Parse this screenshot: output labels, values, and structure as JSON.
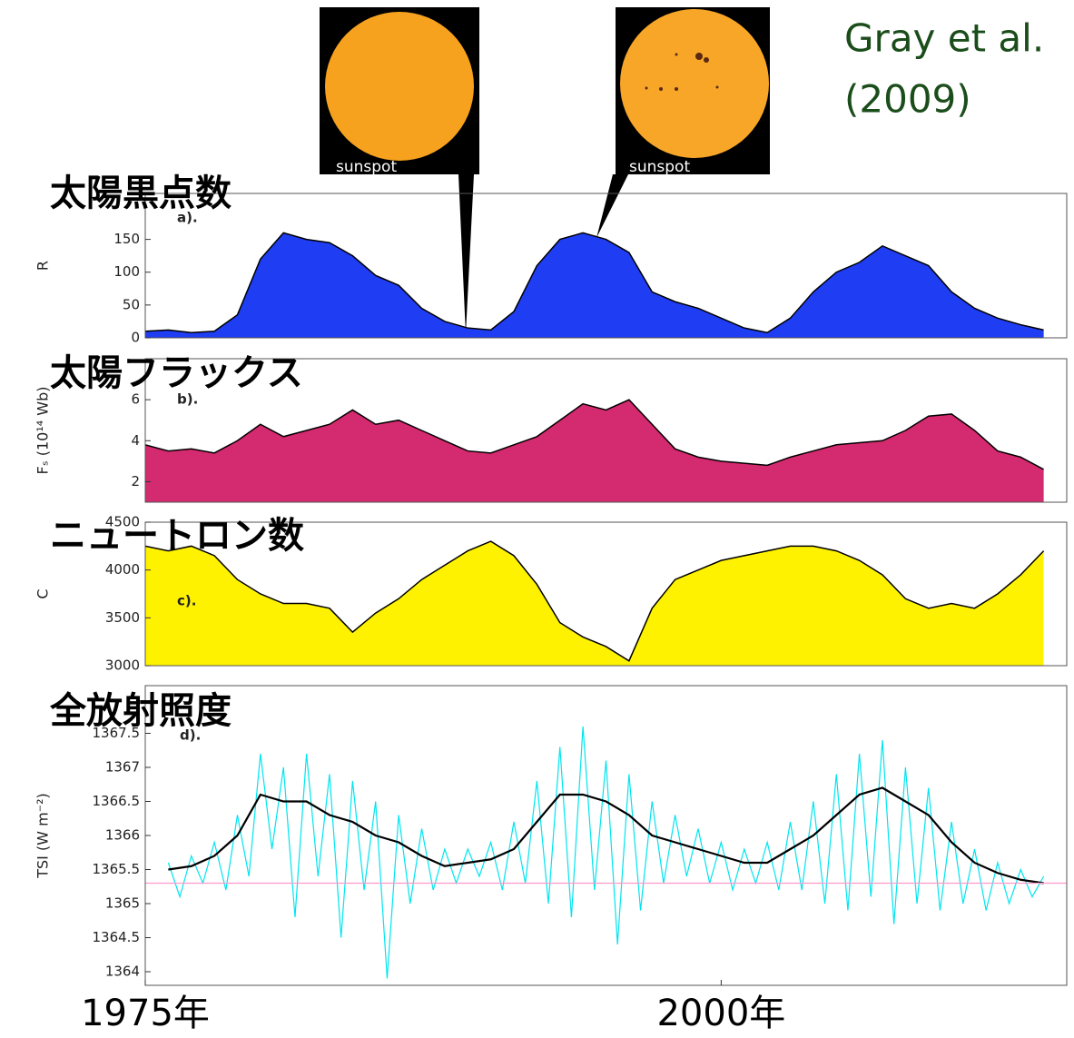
{
  "citation": [
    "Gray et al.",
    "(2009)"
  ],
  "images": [
    {
      "label": "sunspot"
    },
    {
      "label": "sunspot"
    }
  ],
  "chart_data": [
    {
      "type": "area",
      "title": "太陽黒点数",
      "panel_label": "a).",
      "ylabel": "R",
      "xlim": [
        1975,
        2015
      ],
      "ylim": [
        0,
        220
      ],
      "yticks": [
        0,
        50,
        100,
        150
      ],
      "line_color": "#000000",
      "x": [
        1975,
        1976,
        1977,
        1978,
        1979,
        1980,
        1981,
        1982,
        1983,
        1984,
        1985,
        1986,
        1987,
        1988,
        1989,
        1990,
        1991,
        1992,
        1993,
        1994,
        1995,
        1996,
        1997,
        1998,
        1999,
        2000,
        2001,
        2002,
        2003,
        2004,
        2005,
        2006,
        2007,
        2008,
        2009,
        2010,
        2011,
        2012,
        2013,
        2014
      ],
      "series": [
        {
          "color": "#1f3df2",
          "values": [
            10,
            12,
            8,
            10,
            35,
            120,
            160,
            150,
            145,
            125,
            95,
            80,
            45,
            25,
            15,
            12,
            40,
            110,
            150,
            160,
            150,
            130,
            70,
            55,
            45,
            30,
            15,
            8,
            30,
            70,
            100,
            115,
            140,
            125,
            110,
            70,
            45,
            30,
            20,
            12
          ]
        }
      ]
    },
    {
      "type": "area",
      "title": "太陽フラックス",
      "panel_label": "b).",
      "ylabel": "Fₛ (10¹⁴ Wb)",
      "xlim": [
        1975,
        2015
      ],
      "ylim": [
        1,
        8
      ],
      "yticks": [
        2,
        4,
        6
      ],
      "line_color": "#000000",
      "x": [
        1975,
        1976,
        1977,
        1978,
        1979,
        1980,
        1981,
        1982,
        1983,
        1984,
        1985,
        1986,
        1987,
        1988,
        1989,
        1990,
        1991,
        1992,
        1993,
        1994,
        1995,
        1996,
        1997,
        1998,
        1999,
        2000,
        2001,
        2002,
        2003,
        2004,
        2005,
        2006,
        2007,
        2008,
        2009,
        2010,
        2011,
        2012,
        2013,
        2014
      ],
      "series": [
        {
          "color": "#d42a6f",
          "values": [
            3.8,
            3.5,
            3.6,
            3.4,
            4.0,
            4.8,
            4.2,
            4.5,
            4.8,
            5.5,
            4.8,
            5.0,
            4.5,
            4.0,
            3.5,
            3.4,
            3.8,
            4.2,
            5.0,
            5.8,
            5.5,
            6.0,
            4.8,
            3.6,
            3.2,
            3.0,
            2.9,
            2.8,
            3.2,
            3.5,
            3.8,
            3.9,
            4.0,
            4.5,
            5.2,
            5.3,
            4.5,
            3.5,
            3.2,
            2.6
          ]
        }
      ]
    },
    {
      "type": "area",
      "title": "ニュートロン数",
      "panel_label": "c).",
      "ylabel": "C",
      "xlim": [
        1975,
        2015
      ],
      "ylim": [
        3000,
        4500
      ],
      "yticks": [
        3000,
        3500,
        4000,
        4500
      ],
      "line_color": "#000000",
      "x": [
        1975,
        1976,
        1977,
        1978,
        1979,
        1980,
        1981,
        1982,
        1983,
        1984,
        1985,
        1986,
        1987,
        1988,
        1989,
        1990,
        1991,
        1992,
        1993,
        1994,
        1995,
        1996,
        1997,
        1998,
        1999,
        2000,
        2001,
        2002,
        2003,
        2004,
        2005,
        2006,
        2007,
        2008,
        2009,
        2010,
        2011,
        2012,
        2013,
        2014
      ],
      "series": [
        {
          "color": "#fff200",
          "values": [
            4250,
            4200,
            4250,
            4150,
            3900,
            3750,
            3650,
            3650,
            3600,
            3350,
            3550,
            3700,
            3900,
            4050,
            4200,
            4300,
            4150,
            3850,
            3450,
            3300,
            3200,
            3050,
            3600,
            3900,
            4000,
            4100,
            4150,
            4200,
            4250,
            4250,
            4200,
            4100,
            3950,
            3700,
            3600,
            3650,
            3600,
            3750,
            3950,
            4200
          ]
        }
      ]
    },
    {
      "type": "line",
      "title": "全放射照度",
      "panel_label": "d).",
      "ylabel": "TSI (W m⁻²)",
      "xlim": [
        1975,
        2015
      ],
      "ylim": [
        1363.8,
        1368.2
      ],
      "yticks": [
        1364,
        1364.5,
        1365,
        1365.5,
        1366,
        1366.5,
        1367,
        1367.5
      ],
      "xticks": [
        {
          "value": 1975,
          "label": "1975年"
        },
        {
          "value": 2000,
          "label": "2000年"
        }
      ],
      "hline": 1365.3,
      "hline_color": "#ff99cc",
      "series": [
        {
          "color": "#00e5f0",
          "x": [
            1976,
            1976.5,
            1977,
            1977.5,
            1978,
            1978.5,
            1979,
            1979.5,
            1980,
            1980.5,
            1981,
            1981.5,
            1982,
            1982.5,
            1983,
            1983.5,
            1984,
            1984.5,
            1985,
            1985.5,
            1986,
            1986.5,
            1987,
            1987.5,
            1988,
            1988.5,
            1989,
            1989.5,
            1990,
            1990.5,
            1991,
            1991.5,
            1992,
            1992.5,
            1993,
            1993.5,
            1994,
            1994.5,
            1995,
            1995.5,
            1996,
            1996.5,
            1997,
            1997.5,
            1998,
            1998.5,
            1999,
            1999.5,
            2000,
            2000.5,
            2001,
            2001.5,
            2002,
            2002.5,
            2003,
            2003.5,
            2004,
            2004.5,
            2005,
            2005.5,
            2006,
            2006.5,
            2007,
            2007.5,
            2008,
            2008.5,
            2009,
            2009.5,
            2010,
            2010.5,
            2011,
            2011.5,
            2012,
            2012.5,
            2013,
            2013.5,
            2014
          ],
          "values": [
            1365.6,
            1365.1,
            1365.7,
            1365.3,
            1365.9,
            1365.2,
            1366.3,
            1365.4,
            1367.2,
            1365.8,
            1367.0,
            1364.8,
            1367.2,
            1365.4,
            1366.9,
            1364.5,
            1366.8,
            1365.2,
            1366.5,
            1363.9,
            1366.3,
            1365.0,
            1366.1,
            1365.2,
            1365.8,
            1365.3,
            1365.8,
            1365.4,
            1365.9,
            1365.2,
            1366.2,
            1365.3,
            1366.8,
            1365.0,
            1367.3,
            1364.8,
            1367.6,
            1365.2,
            1367.1,
            1364.4,
            1366.9,
            1364.9,
            1366.5,
            1365.3,
            1366.3,
            1365.4,
            1366.1,
            1365.3,
            1365.9,
            1365.2,
            1365.8,
            1365.3,
            1365.9,
            1365.2,
            1366.2,
            1365.2,
            1366.5,
            1365.0,
            1366.9,
            1364.9,
            1367.2,
            1365.1,
            1367.4,
            1364.7,
            1367.0,
            1365.0,
            1366.7,
            1364.9,
            1366.2,
            1365.0,
            1365.8,
            1364.9,
            1365.6,
            1365.0,
            1365.5,
            1365.1,
            1365.4
          ]
        },
        {
          "color": "#000000",
          "x": [
            1976,
            1977,
            1978,
            1979,
            1980,
            1981,
            1982,
            1983,
            1984,
            1985,
            1986,
            1987,
            1988,
            1989,
            1990,
            1991,
            1992,
            1993,
            1994,
            1995,
            1996,
            1997,
            1998,
            1999,
            2000,
            2001,
            2002,
            2003,
            2004,
            2005,
            2006,
            2007,
            2008,
            2009,
            2010,
            2011,
            2012,
            2013,
            2014
          ],
          "values": [
            1365.5,
            1365.55,
            1365.7,
            1366.0,
            1366.6,
            1366.5,
            1366.5,
            1366.3,
            1366.2,
            1366.0,
            1365.9,
            1365.7,
            1365.55,
            1365.6,
            1365.65,
            1365.8,
            1366.2,
            1366.6,
            1366.6,
            1366.5,
            1366.3,
            1366.0,
            1365.9,
            1365.8,
            1365.7,
            1365.6,
            1365.6,
            1365.8,
            1366.0,
            1366.3,
            1366.6,
            1366.7,
            1366.5,
            1366.3,
            1365.9,
            1365.6,
            1365.45,
            1365.35,
            1365.3
          ]
        }
      ]
    }
  ]
}
